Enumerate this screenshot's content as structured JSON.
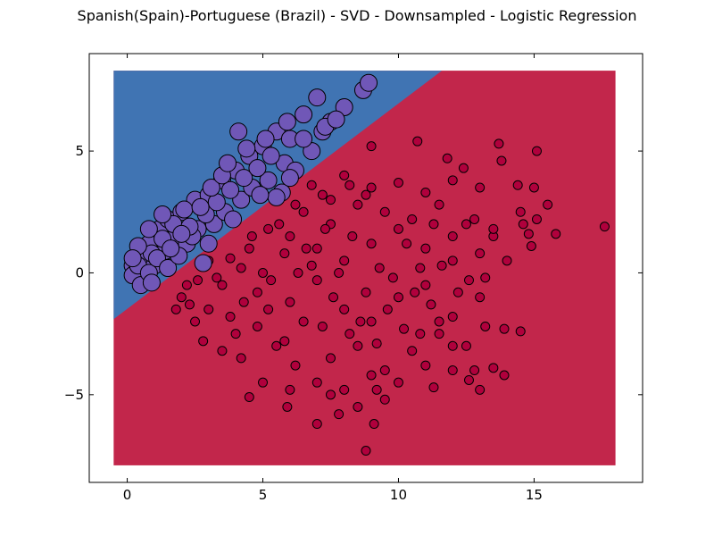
{
  "chart_data": {
    "type": "scatter",
    "title": "Spanish(Spain)-Portuguese (Brazil) - SVD - Downsampled - Logistic Regression",
    "xlim": [
      -1.4,
      19.0
    ],
    "ylim": [
      -8.6,
      9.0
    ],
    "x_ticks": [
      0,
      5,
      10,
      15
    ],
    "x_tick_labels": [
      "0",
      "5",
      "10",
      "15"
    ],
    "y_ticks": [
      5,
      0,
      -5
    ],
    "y_tick_labels": [
      "5",
      "0",
      "−5"
    ],
    "grid": false,
    "legend": "none",
    "decision_regions": {
      "x_range": [
        -0.5,
        18.0
      ],
      "y_range": [
        -7.9,
        8.3
      ],
      "boundary": [
        [
          -0.5,
          -1.9
        ],
        [
          11.6,
          8.3
        ]
      ],
      "colors": {
        "upper_left": "#4074b3",
        "lower_right": "#c2264b"
      }
    },
    "series": [
      {
        "color": "#b0003c",
        "marker_size": "small",
        "points": [
          [
            2.0,
            -1.0
          ],
          [
            3.5,
            -0.5
          ],
          [
            5.0,
            0.0
          ],
          [
            6.0,
            -1.2
          ],
          [
            7.0,
            -0.3
          ],
          [
            8.0,
            -1.5
          ],
          [
            9.0,
            -2.0
          ],
          [
            10.0,
            -1.0
          ],
          [
            11.0,
            -0.5
          ],
          [
            12.0,
            -1.8
          ],
          [
            4.0,
            -2.5
          ],
          [
            5.5,
            -3.0
          ],
          [
            6.5,
            -2.0
          ],
          [
            7.5,
            -3.5
          ],
          [
            8.5,
            -3.0
          ],
          [
            9.5,
            -4.0
          ],
          [
            10.5,
            -3.2
          ],
          [
            11.5,
            -2.5
          ],
          [
            12.5,
            -3.0
          ],
          [
            13.0,
            -1.0
          ],
          [
            3.0,
            0.5
          ],
          [
            4.5,
            1.0
          ],
          [
            6.0,
            1.5
          ],
          [
            7.0,
            1.0
          ],
          [
            8.0,
            0.5
          ],
          [
            9.0,
            1.2
          ],
          [
            10.0,
            1.8
          ],
          [
            11.0,
            1.0
          ],
          [
            12.0,
            0.5
          ],
          [
            13.0,
            0.8
          ],
          [
            6.5,
            2.5
          ],
          [
            7.5,
            2.0
          ],
          [
            8.5,
            2.8
          ],
          [
            9.5,
            2.5
          ],
          [
            10.5,
            2.2
          ],
          [
            11.5,
            2.8
          ],
          [
            12.5,
            2.0
          ],
          [
            13.5,
            1.5
          ],
          [
            14.0,
            0.5
          ],
          [
            14.5,
            2.5
          ],
          [
            5.0,
            -4.5
          ],
          [
            6.0,
            -4.8
          ],
          [
            7.0,
            -4.5
          ],
          [
            8.0,
            -4.8
          ],
          [
            9.0,
            -4.2
          ],
          [
            10.0,
            -4.5
          ],
          [
            11.0,
            -3.8
          ],
          [
            12.0,
            -4.0
          ],
          [
            7.5,
            -5.0
          ],
          [
            8.5,
            -5.5
          ],
          [
            5.9,
            -5.5
          ],
          [
            4.5,
            -5.1
          ],
          [
            7.0,
            -6.2
          ],
          [
            8.8,
            -7.3
          ],
          [
            9.1,
            -6.2
          ],
          [
            7.8,
            -5.8
          ],
          [
            9.2,
            -4.8
          ],
          [
            9.5,
            -5.2
          ],
          [
            12.8,
            -4.0
          ],
          [
            14.5,
            -2.4
          ],
          [
            13.9,
            -4.2
          ],
          [
            13.5,
            -3.9
          ],
          [
            12.6,
            -4.4
          ],
          [
            11.3,
            -4.7
          ],
          [
            13.0,
            -4.8
          ],
          [
            12.0,
            -3.0
          ],
          [
            13.2,
            -2.2
          ],
          [
            13.9,
            -2.3
          ],
          [
            11.5,
            -2.0
          ],
          [
            10.8,
            -2.5
          ],
          [
            2.5,
            -2.0
          ],
          [
            3.0,
            -1.5
          ],
          [
            2.2,
            -0.5
          ],
          [
            2.8,
            -2.8
          ],
          [
            3.5,
            -3.2
          ],
          [
            4.2,
            -3.5
          ],
          [
            4.8,
            -2.2
          ],
          [
            5.2,
            -1.5
          ],
          [
            5.8,
            -2.8
          ],
          [
            6.2,
            -3.8
          ],
          [
            7.2,
            -2.2
          ],
          [
            8.2,
            -2.5
          ],
          [
            9.2,
            -2.9
          ],
          [
            10.2,
            -2.3
          ],
          [
            11.2,
            -1.3
          ],
          [
            12.2,
            -0.8
          ],
          [
            13.2,
            -0.2
          ],
          [
            10.8,
            0.2
          ],
          [
            9.8,
            -0.2
          ],
          [
            8.8,
            -0.8
          ],
          [
            7.8,
            0.0
          ],
          [
            6.8,
            0.3
          ],
          [
            5.8,
            0.8
          ],
          [
            4.8,
            -0.8
          ],
          [
            3.8,
            -1.8
          ],
          [
            4.2,
            0.2
          ],
          [
            5.2,
            1.8
          ],
          [
            6.2,
            2.8
          ],
          [
            7.2,
            3.2
          ],
          [
            8.2,
            3.6
          ],
          [
            9.0,
            5.2
          ],
          [
            10.7,
            5.4
          ],
          [
            11.8,
            4.7
          ],
          [
            12.4,
            4.3
          ],
          [
            13.7,
            5.3
          ],
          [
            15.1,
            5.0
          ],
          [
            13.8,
            4.6
          ],
          [
            14.4,
            3.6
          ],
          [
            15.0,
            3.5
          ],
          [
            15.5,
            2.8
          ],
          [
            15.1,
            2.2
          ],
          [
            14.8,
            1.6
          ],
          [
            14.6,
            2.0
          ],
          [
            15.8,
            1.6
          ],
          [
            14.9,
            1.1
          ],
          [
            13.5,
            1.8
          ],
          [
            17.6,
            1.9
          ],
          [
            13.0,
            3.5
          ],
          [
            12.0,
            3.8
          ],
          [
            11.0,
            3.3
          ],
          [
            10.0,
            3.7
          ],
          [
            9.0,
            3.5
          ],
          [
            8.0,
            4.0
          ],
          [
            8.8,
            3.2
          ],
          [
            7.5,
            3.0
          ],
          [
            6.8,
            3.6
          ],
          [
            12.8,
            2.2
          ],
          [
            12.0,
            1.5
          ],
          [
            11.3,
            2.0
          ],
          [
            10.3,
            1.2
          ],
          [
            9.3,
            0.2
          ],
          [
            8.3,
            1.5
          ],
          [
            7.3,
            1.8
          ],
          [
            6.3,
            0.0
          ],
          [
            5.3,
            -0.3
          ],
          [
            4.3,
            -1.2
          ],
          [
            3.3,
            -0.2
          ],
          [
            2.3,
            -1.3
          ],
          [
            1.8,
            -1.5
          ],
          [
            2.6,
            -0.3
          ],
          [
            3.8,
            0.6
          ],
          [
            4.6,
            1.5
          ],
          [
            5.6,
            2.0
          ],
          [
            6.6,
            1.0
          ],
          [
            7.6,
            -1.0
          ],
          [
            8.6,
            -2.0
          ],
          [
            9.6,
            -1.5
          ],
          [
            10.6,
            -0.8
          ],
          [
            11.6,
            0.3
          ],
          [
            12.6,
            -0.3
          ]
        ]
      },
      {
        "color": "#7057b7",
        "marker_size": "large",
        "points": [
          [
            0.2,
            0.3
          ],
          [
            0.5,
            0.8
          ],
          [
            0.8,
            1.2
          ],
          [
            1.2,
            1.8
          ],
          [
            1.5,
            2.2
          ],
          [
            2.0,
            2.5
          ],
          [
            2.5,
            3.0
          ],
          [
            3.0,
            3.2
          ],
          [
            3.5,
            3.8
          ],
          [
            4.0,
            4.2
          ],
          [
            4.5,
            4.8
          ],
          [
            5.0,
            5.2
          ],
          [
            5.5,
            5.8
          ],
          [
            6.0,
            5.5
          ],
          [
            6.5,
            6.5
          ],
          [
            7.0,
            7.2
          ],
          [
            8.7,
            7.5
          ],
          [
            8.9,
            7.8
          ],
          [
            8.0,
            6.8
          ],
          [
            7.5,
            6.2
          ],
          [
            0.3,
            0.0
          ],
          [
            0.6,
            0.5
          ],
          [
            1.0,
            0.3
          ],
          [
            1.4,
            0.9
          ],
          [
            1.8,
            1.5
          ],
          [
            2.2,
            1.2
          ],
          [
            2.6,
            1.8
          ],
          [
            3.2,
            2.0
          ],
          [
            3.6,
            2.5
          ],
          [
            4.2,
            3.0
          ],
          [
            4.6,
            3.5
          ],
          [
            5.2,
            3.8
          ],
          [
            5.8,
            4.5
          ],
          [
            6.2,
            4.2
          ],
          [
            6.8,
            5.0
          ],
          [
            7.2,
            5.8
          ],
          [
            0.2,
            -0.1
          ],
          [
            0.4,
            0.3
          ],
          [
            0.9,
            0.8
          ],
          [
            1.3,
            1.4
          ],
          [
            1.7,
            2.0
          ],
          [
            2.1,
            2.6
          ],
          [
            2.4,
            1.5
          ],
          [
            2.9,
            2.4
          ],
          [
            3.3,
            2.9
          ],
          [
            3.8,
            3.4
          ],
          [
            4.3,
            3.9
          ],
          [
            4.8,
            4.3
          ],
          [
            5.3,
            4.8
          ],
          [
            5.7,
            3.3
          ],
          [
            0.5,
            -0.5
          ],
          [
            0.8,
            0.0
          ],
          [
            1.1,
            0.6
          ],
          [
            1.5,
            0.2
          ],
          [
            1.9,
            0.7
          ],
          [
            2.3,
            1.9
          ],
          [
            2.7,
            2.7
          ],
          [
            3.1,
            3.5
          ],
          [
            3.5,
            4.0
          ],
          [
            3.9,
            2.2
          ],
          [
            4.1,
            5.8
          ],
          [
            5.5,
            3.1
          ],
          [
            4.9,
            3.2
          ],
          [
            3.0,
            1.2
          ],
          [
            2.0,
            1.6
          ],
          [
            1.3,
            2.4
          ],
          [
            0.8,
            1.8
          ],
          [
            0.4,
            1.1
          ],
          [
            0.2,
            0.6
          ],
          [
            0.9,
            -0.4
          ],
          [
            6.0,
            3.9
          ],
          [
            6.5,
            5.5
          ],
          [
            7.3,
            6.0
          ],
          [
            7.7,
            6.3
          ],
          [
            5.9,
            6.2
          ],
          [
            5.1,
            5.5
          ],
          [
            4.4,
            5.1
          ],
          [
            3.7,
            4.5
          ],
          [
            2.8,
            0.4
          ],
          [
            1.6,
            1.0
          ]
        ]
      }
    ]
  }
}
